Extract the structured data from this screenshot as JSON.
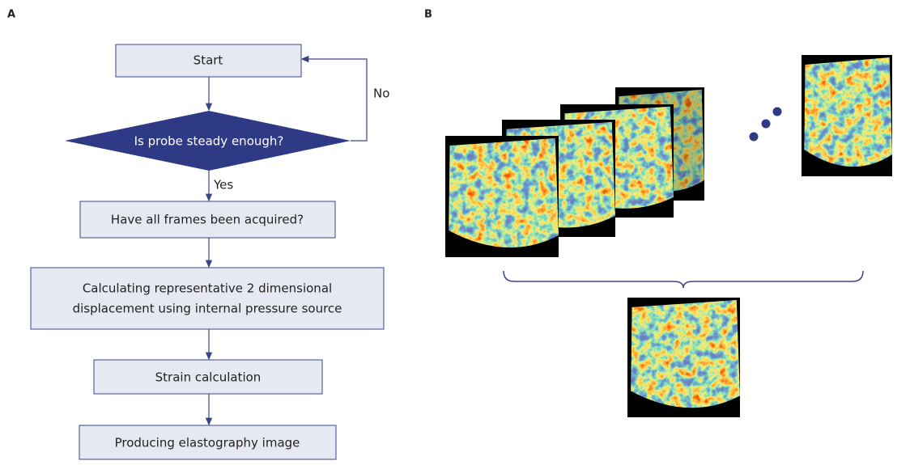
{
  "panels": {
    "a": "A",
    "b": "B"
  },
  "nodes": [
    {
      "label": "Start"
    },
    {
      "label": "Is probe steady enough?"
    },
    {
      "label": "Have all frames been acquired?"
    },
    {
      "lines": [
        "Calculating representative 2 dimensional",
        "displacement using internal pressure source"
      ]
    },
    {
      "label": "Strain calculation"
    },
    {
      "label": "Producing elastography image"
    }
  ],
  "edges": {
    "no": "No",
    "yes": "Yes"
  }
}
